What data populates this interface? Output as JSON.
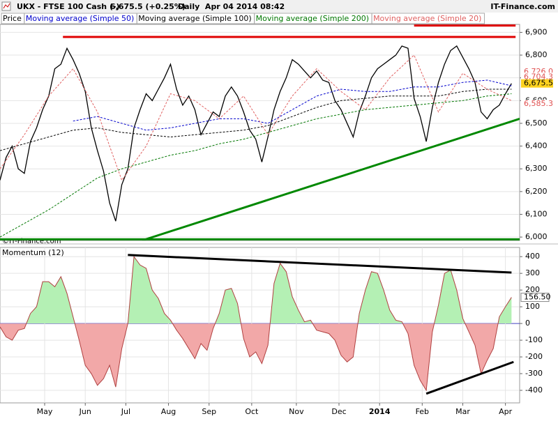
{
  "header": {
    "symbol": "UKX - FTSE 100 Cash (-)",
    "quote": "6,675.5 (+0.25%)",
    "period": "Daily  Apr 04 2014 08:42",
    "brand": "IT-Finance.com",
    "copyright": "©IT-Finance.com"
  },
  "chart_data": [
    {
      "type": "line",
      "xlim": [
        0,
        256
      ],
      "ylim": [
        5985,
        6935
      ],
      "yticks": [
        {
          "value": 6000,
          "label": "6,000"
        },
        {
          "value": 6100,
          "label": "6,100"
        },
        {
          "value": 6200,
          "label": "6,200"
        },
        {
          "value": 6300,
          "label": "6,300"
        },
        {
          "value": 6400,
          "label": "6,400"
        },
        {
          "value": 6500,
          "label": "6,500"
        },
        {
          "value": 6600,
          "label": "6,600"
        },
        {
          "value": 6700,
          "label": "6,700"
        },
        {
          "value": 6800,
          "label": "6,800"
        },
        {
          "value": 6900,
          "label": "6,900"
        }
      ],
      "grid": true,
      "series": [
        {
          "name": "Price",
          "color": "#000000",
          "dash": false,
          "x": [
            0,
            3,
            6,
            9,
            12,
            15,
            18,
            21,
            24,
            27,
            30,
            33,
            36,
            39,
            42,
            45,
            48,
            51,
            54,
            57,
            60,
            63,
            66,
            69,
            72,
            75,
            78,
            81,
            84,
            87,
            90,
            93,
            96,
            99,
            102,
            105,
            108,
            111,
            114,
            117,
            120,
            123,
            126,
            129,
            132,
            135,
            138,
            141,
            144,
            147,
            150,
            153,
            156,
            159,
            162,
            165,
            168,
            171,
            174,
            177,
            180,
            183,
            186,
            189,
            192,
            195,
            198,
            201,
            204,
            207,
            210,
            213,
            216,
            219,
            222,
            225,
            228,
            231,
            234,
            237,
            240,
            243,
            246,
            249,
            252
          ],
          "values": [
            6250,
            6350,
            6400,
            6300,
            6280,
            6420,
            6480,
            6560,
            6620,
            6740,
            6760,
            6830,
            6780,
            6720,
            6640,
            6480,
            6380,
            6290,
            6150,
            6070,
            6230,
            6300,
            6480,
            6560,
            6630,
            6600,
            6650,
            6700,
            6760,
            6650,
            6580,
            6620,
            6560,
            6450,
            6500,
            6550,
            6530,
            6620,
            6660,
            6620,
            6550,
            6470,
            6430,
            6330,
            6440,
            6560,
            6640,
            6700,
            6780,
            6760,
            6730,
            6700,
            6730,
            6690,
            6680,
            6600,
            6560,
            6500,
            6440,
            6550,
            6620,
            6700,
            6740,
            6760,
            6780,
            6800,
            6840,
            6830,
            6610,
            6530,
            6420,
            6570,
            6680,
            6760,
            6820,
            6840,
            6790,
            6740,
            6680,
            6550,
            6520,
            6560,
            6580,
            6630,
            6675
          ]
        },
        {
          "name": "Moving average (Simple 50)",
          "color": "#0000cc",
          "dash": true,
          "x": [
            0,
            12,
            24,
            36,
            48,
            60,
            72,
            84,
            96,
            108,
            120,
            132,
            144,
            156,
            168,
            180,
            192,
            204,
            216,
            228,
            240,
            252
          ],
          "values": [
            null,
            null,
            null,
            6510,
            6530,
            6500,
            6470,
            6480,
            6500,
            6520,
            6520,
            6500,
            6560,
            6620,
            6650,
            6640,
            6640,
            6660,
            6660,
            6680,
            6690,
            6665
          ]
        },
        {
          "name": "Moving average (Simple 100)",
          "color": "#000000",
          "dash": true,
          "x": [
            0,
            12,
            24,
            36,
            48,
            60,
            72,
            84,
            96,
            108,
            120,
            132,
            144,
            156,
            168,
            180,
            192,
            204,
            216,
            228,
            240,
            252
          ],
          "values": [
            6380,
            6410,
            6440,
            6470,
            6480,
            6460,
            6450,
            6440,
            6450,
            6460,
            6470,
            6490,
            6530,
            6570,
            6600,
            6610,
            6620,
            6620,
            6620,
            6640,
            6650,
            6650
          ]
        },
        {
          "name": "Moving average (Simple 200)",
          "color": "#007700",
          "dash": true,
          "x": [
            0,
            12,
            24,
            36,
            48,
            60,
            72,
            84,
            96,
            108,
            120,
            132,
            144,
            156,
            168,
            180,
            192,
            204,
            216,
            228,
            240,
            252
          ],
          "values": [
            6000,
            6060,
            6120,
            6190,
            6260,
            6300,
            6330,
            6360,
            6380,
            6410,
            6430,
            6460,
            6490,
            6520,
            6540,
            6560,
            6570,
            6580,
            6590,
            6600,
            6620,
            6630
          ]
        },
        {
          "name": "Moving average (Simple 20)",
          "color": "#e06060",
          "dash": true,
          "x": [
            0,
            12,
            24,
            36,
            48,
            60,
            72,
            84,
            96,
            108,
            120,
            132,
            144,
            156,
            168,
            180,
            192,
            204,
            216,
            228,
            240,
            252
          ],
          "values": [
            6300,
            6450,
            6620,
            6740,
            6550,
            6250,
            6400,
            6630,
            6600,
            6520,
            6620,
            6450,
            6620,
            6740,
            6640,
            6560,
            6700,
            6800,
            6550,
            6720,
            6650,
            6600
          ]
        }
      ],
      "annotations": [
        {
          "color": "#e00000",
          "x1": 31,
          "y1": 6880,
          "x2": 254,
          "y2": 6880
        },
        {
          "color": "#e00000",
          "x1": 204,
          "y1": 6930,
          "x2": 254,
          "y2": 6930
        },
        {
          "color": "#008800",
          "x1": 0,
          "y1": 5990,
          "x2": 256,
          "y2": 5990
        },
        {
          "color": "#008800",
          "x1": 70,
          "y1": 5985,
          "x2": 256,
          "y2": 6520
        }
      ],
      "price_tags": [
        {
          "value": 6726,
          "label": "6,726.0",
          "color": "#e05050",
          "background": "#ffffff"
        },
        {
          "value": 6704.3,
          "label": "6,704.3",
          "color": "#e05050",
          "background": "#ffffff"
        },
        {
          "value": 6675.5,
          "label": "6,675.5",
          "color": "#000000",
          "background": "#ffd21f"
        },
        {
          "value": 6585.3,
          "label": "6,585.3",
          "color": "#e05050",
          "background": "#ffffff"
        }
      ]
    },
    {
      "type": "area",
      "xlim": [
        0,
        256
      ],
      "ylim": [
        -475,
        455
      ],
      "yticks": [
        400,
        300,
        200,
        100,
        0,
        -100,
        -200,
        -300,
        -400
      ],
      "xticks": [
        {
          "value": 22,
          "label": "May"
        },
        {
          "value": 42,
          "label": "Jun"
        },
        {
          "value": 62,
          "label": "Jul"
        },
        {
          "value": 83,
          "label": "Aug"
        },
        {
          "value": 103,
          "label": "Sep"
        },
        {
          "value": 124,
          "label": "Oct"
        },
        {
          "value": 146,
          "label": "Nov"
        },
        {
          "value": 167,
          "label": "Dec"
        },
        {
          "value": 187,
          "label": "2014"
        },
        {
          "value": 208,
          "label": "Feb"
        },
        {
          "value": 228,
          "label": "Mar"
        },
        {
          "value": 249,
          "label": "Apr"
        }
      ],
      "grid": true,
      "series": [
        {
          "name": "Momentum (12)",
          "color": "#b04040",
          "positive_color": "#b4f0b4",
          "negative_color": "#f2a8a8",
          "x": [
            0,
            3,
            6,
            9,
            12,
            15,
            18,
            21,
            24,
            27,
            30,
            33,
            36,
            39,
            42,
            45,
            48,
            51,
            54,
            57,
            60,
            63,
            66,
            69,
            72,
            75,
            78,
            81,
            84,
            87,
            90,
            93,
            96,
            99,
            102,
            105,
            108,
            111,
            114,
            117,
            120,
            123,
            126,
            129,
            132,
            135,
            138,
            141,
            144,
            147,
            150,
            153,
            156,
            159,
            162,
            165,
            168,
            171,
            174,
            177,
            180,
            183,
            186,
            189,
            192,
            195,
            198,
            201,
            204,
            207,
            210,
            213,
            216,
            219,
            222,
            225,
            228,
            231,
            234,
            237,
            240,
            243,
            246,
            249,
            252
          ],
          "values": [
            -20,
            -80,
            -100,
            -40,
            -30,
            60,
            100,
            250,
            250,
            220,
            280,
            180,
            40,
            -100,
            -250,
            -300,
            -370,
            -330,
            -250,
            -380,
            -150,
            0,
            400,
            350,
            330,
            200,
            150,
            60,
            20,
            -40,
            -90,
            -150,
            -210,
            -120,
            -160,
            -30,
            60,
            200,
            210,
            120,
            -90,
            -200,
            -170,
            -240,
            -130,
            240,
            360,
            310,
            160,
            80,
            10,
            20,
            -40,
            -50,
            -60,
            -100,
            -190,
            -230,
            -200,
            60,
            200,
            310,
            300,
            200,
            80,
            20,
            10,
            -60,
            -250,
            -340,
            -400,
            -50,
            110,
            300,
            320,
            200,
            30,
            -50,
            -130,
            -300,
            -220,
            -150,
            40,
            100,
            156.5
          ],
          "last_label": "156.50"
        }
      ],
      "annotations": [
        {
          "color": "#000000",
          "x1": 63,
          "y1": 410,
          "x2": 252,
          "y2": 305
        },
        {
          "color": "#000000",
          "x1": 210,
          "y1": -420,
          "x2": 253,
          "y2": -230
        }
      ]
    }
  ]
}
